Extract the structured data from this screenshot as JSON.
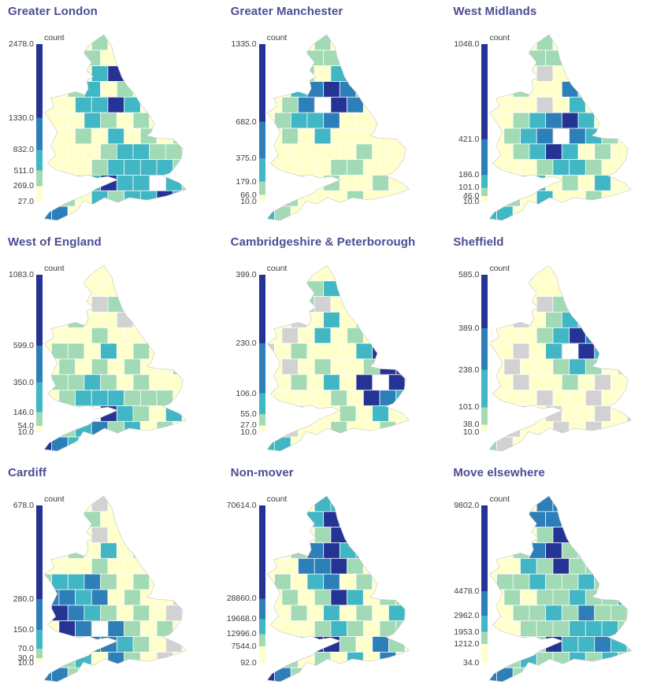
{
  "figure": {
    "background": "#ffffff",
    "title_color": "#4c4c96",
    "tick_color": "#3c3c3c",
    "palette": {
      "yellow": "#ffffcc",
      "green": "#a1dab4",
      "teal": "#41b6c4",
      "blue": "#2c7fb8",
      "navy": "#253494",
      "gray": "#d2d2d2",
      "white": "#ffffff"
    },
    "scale_colors_top_to_bottom": [
      "#253494",
      "#2c7fb8",
      "#41b6c4",
      "#a1dab4",
      "#ffffcc"
    ]
  },
  "chart_data": {
    "type": "heatmap",
    "subtype": "choropleth-small-multiples",
    "layout": "3x3 grid of England & Wales choropleth maps, each with its own vertical colorbar",
    "colorbar_label": "count",
    "colorscale": [
      "#ffffcc",
      "#a1dab4",
      "#41b6c4",
      "#2c7fb8",
      "#253494"
    ],
    "no_data_color": "#d2d2d2",
    "self_region_color": "#ffffff",
    "panels": [
      {
        "title": "Greater London",
        "colorbar_ticks": [
          2478.0,
          1330.0,
          832.0,
          511.0,
          269.0,
          27.0
        ]
      },
      {
        "title": "Greater Manchester",
        "colorbar_ticks": [
          1335.0,
          682.0,
          375.0,
          179.0,
          66.0,
          10.0
        ]
      },
      {
        "title": "West Midlands",
        "colorbar_ticks": [
          1048.0,
          421.0,
          186.0,
          101.0,
          46.0,
          10.0
        ]
      },
      {
        "title": "West of England",
        "colorbar_ticks": [
          1083.0,
          599.0,
          350.0,
          146.0,
          54.0,
          10.0
        ]
      },
      {
        "title": "Cambridgeshire & Peterborough",
        "colorbar_ticks": [
          399.0,
          230.0,
          106.0,
          55.0,
          27.0,
          10.0
        ]
      },
      {
        "title": "Sheffield",
        "colorbar_ticks": [
          585.0,
          389.0,
          238.0,
          101.0,
          38.0,
          10.0
        ]
      },
      {
        "title": "Cardiff",
        "colorbar_ticks": [
          678.0,
          280.0,
          150.0,
          70.0,
          30.0,
          10.0
        ]
      },
      {
        "title": "Non-mover",
        "colorbar_ticks": [
          70614.0,
          28860.0,
          19668.0,
          12996.0,
          7544.0,
          92.0
        ]
      },
      {
        "title": "Move elsewhere",
        "colorbar_ticks": [
          9802.0,
          4478.0,
          2962.0,
          1953.0,
          1212.0,
          34.0
        ]
      }
    ]
  },
  "panels": [
    {
      "title": "Greater London",
      "slug": "greater-london",
      "colorbar_label": "count",
      "ticks": [
        2478,
        1330,
        832,
        511,
        269,
        27
      ],
      "tick_labels": [
        "2478.0",
        "1330.0",
        "832.0",
        "511.0",
        "269.0",
        "27.0"
      ],
      "grid": [
        "YYYGYYYYYYY",
        "YYYGYYYYYYY",
        "YYYTNYYYYYY",
        "YYGTYGYYYYY",
        "YYTTNTYYYYY",
        "YYYTGYGYGYY",
        "YYGYTYGYGTY",
        "YYYYGTTGGGY",
        "YYYGTTTTGBY",
        "YYGTNTTWTGY",
        "YGYTGTTNTYY",
        "BBYGYYYYYYY"
      ]
    },
    {
      "title": "Greater Manchester",
      "slug": "greater-manchester",
      "colorbar_label": "count",
      "ticks": [
        1335,
        682,
        375,
        179,
        66,
        10
      ],
      "tick_labels": [
        "1335.0",
        "682.0",
        "375.0",
        "179.0",
        "66.0",
        "10.0"
      ],
      "grid": [
        "YYYGYYYYYYY",
        "YYGGGYYYYYY",
        "YYGYTBYYYYY",
        "YYTBNBGYYYY",
        "YGBWNBYYYYY",
        "YGTTBYYYYXY",
        "YGYTYYYYYXY",
        "YYYYYYGYYGY",
        "YYYYGGYYYYY",
        "YYGYGYYGYYY",
        "YGYYYGYYYXY",
        "TGYXYYYYYYY"
      ]
    },
    {
      "title": "West Midlands",
      "slug": "west-midlands",
      "colorbar_label": "count",
      "ticks": [
        1048,
        421,
        186,
        101,
        46,
        10
      ],
      "tick_labels": [
        "1048.0",
        "421.0",
        "186.0",
        "101.0",
        "46.0",
        "10.0"
      ],
      "grid": [
        "YYYGYYYYYYY",
        "YYXGGYYYYYY",
        "YYYXYGGYYYY",
        "YYGYYBGYYYY",
        "YYYXYTYYYYY",
        "YYGTBNTYYYY",
        "YGTBWBTGYYY",
        "YYGTNTYGYXY",
        "YYYGTTGYYYY",
        "YYGTYGYTYYY",
        "YGYTYYGYYXY",
        "TTYYYYYYYYY"
      ]
    },
    {
      "title": "West of England",
      "slug": "west-of-england",
      "colorbar_label": "count",
      "ticks": [
        1083,
        599,
        350,
        146,
        54,
        10
      ],
      "tick_labels": [
        "1083.0",
        "599.0",
        "350.0",
        "146.0",
        "54.0",
        "10.0"
      ],
      "grid": [
        "YYYYYYYYYYY",
        "YYXYYYYYYYY",
        "YYYXGYYYYYY",
        "YYGYYXYYYYY",
        "YYYGYYYYYYY",
        "YGGYTYGYYXY",
        "YGYGYGYYGYY",
        "YGGTGYGYYYY",
        "YGTTTGGGYYY",
        "YYGWNTGYTYY",
        "YGTBGTYGYYY",
        "NBTGYYYYYYY"
      ]
    },
    {
      "title": "Cambridgeshire & Peterborough",
      "slug": "cambridgeshire-peterborough",
      "colorbar_label": "count",
      "ticks": [
        399,
        230,
        106,
        55,
        27,
        10
      ],
      "tick_labels": [
        "399.0",
        "230.0",
        "106.0",
        "55.0",
        "27.0",
        "10.0"
      ],
      "grid": [
        "YYYYYYYYYYY",
        "YYXGTYYYYYY",
        "YYGXYGYYYYY",
        "YYXYTYGYYYY",
        "YXYTYGYGYYY",
        "XYGYYYTNYYY",
        "YXYGYYGNNTY",
        "YYGYTYNWNTG",
        "YYYYGYNBTGY",
        "YYGYYGYTYYY",
        "YXYYGYYGYYY",
        "TTYYYYYYYYY"
      ]
    },
    {
      "title": "Sheffield",
      "slug": "sheffield",
      "colorbar_label": "count",
      "ticks": [
        585,
        389,
        238,
        101,
        38,
        10
      ],
      "tick_labels": [
        "585.0",
        "389.0",
        "238.0",
        "101.0",
        "38.0",
        "10.0"
      ],
      "grid": [
        "YYYYYYYYYYY",
        "YYGYYYYYYYY",
        "YYYXGGYYYYY",
        "YYXYGTGYYYY",
        "YYYGTNBYYYY",
        "YYXYTWNTYYY",
        "YXYYGTGYXYY",
        "YYXYYGYXYXY",
        "YYYXYYXYYYY",
        "YYXYXYYXYXY",
        "YXYYXYXYYXY",
        "GXYYXYYYYYY"
      ]
    },
    {
      "title": "Cardiff",
      "slug": "cardiff",
      "colorbar_label": "count",
      "ticks": [
        678,
        280,
        150,
        70,
        30,
        10
      ],
      "tick_labels": [
        "678.0",
        "280.0",
        "150.0",
        "70.0",
        "30.0",
        "10.0"
      ],
      "grid": [
        "YYYXYYYYYYY",
        "YYXGYXYYYYY",
        "YYYXYXXYYYY",
        "YYGYTYXYYYY",
        "YYYGYYYXYYY",
        "GTTBGYGYXYY",
        "BBTBYGYYXXY",
        "NNBTGYGYXXY",
        "YNBWBGYGYXY",
        "YYGBBTGYXYY",
        "YGTYBGYXYXY",
        "BBGYYYYYYYY"
      ]
    },
    {
      "title": "Non-mover",
      "slug": "non-mover",
      "colorbar_label": "count",
      "ticks": [
        70614,
        28860,
        19668,
        12996,
        7544,
        92
      ],
      "tick_labels": [
        "70614.0",
        "28860.0",
        "19668.0",
        "12996.0",
        "7544.0",
        "92.0"
      ],
      "grid": [
        "YYYTTYYYYYY",
        "YYGTNYYYYYY",
        "YYYGNTYYYYY",
        "YYGBNTTYYYY",
        "YYBBNGYGYYY",
        "YGYTBYGYYYY",
        "YGYGNTYGGYY",
        "YYGYTYGYTGY",
        "YYYGTGYGGYY",
        "YYGNNGYBGYY",
        "YGYGYTYBYYY",
        "NBGYGYYYYYY"
      ]
    },
    {
      "title": "Move elsewhere",
      "slug": "move-elsewhere",
      "colorbar_label": "count",
      "ticks": [
        9802,
        4478,
        2962,
        1953,
        1212,
        34
      ],
      "tick_labels": [
        "9802.0",
        "4478.0",
        "2962.0",
        "1953.0",
        "1212.0",
        "34.0"
      ],
      "grid": [
        "YYYBBYYYYYY",
        "YYGBBYYYYYY",
        "YYYGNNYYYYY",
        "YYGBNGGYYYY",
        "YYTGNGGGYYY",
        "YGGTGGTGGYY",
        "YGYGGTGGTTY",
        "YYGGTGBGGGY",
        "YYGGGTTTGTY",
        "YYGGNTTBTGY",
        "YGTGGTGTGNY",
        "BBGYGYGYYYY"
      ]
    }
  ]
}
